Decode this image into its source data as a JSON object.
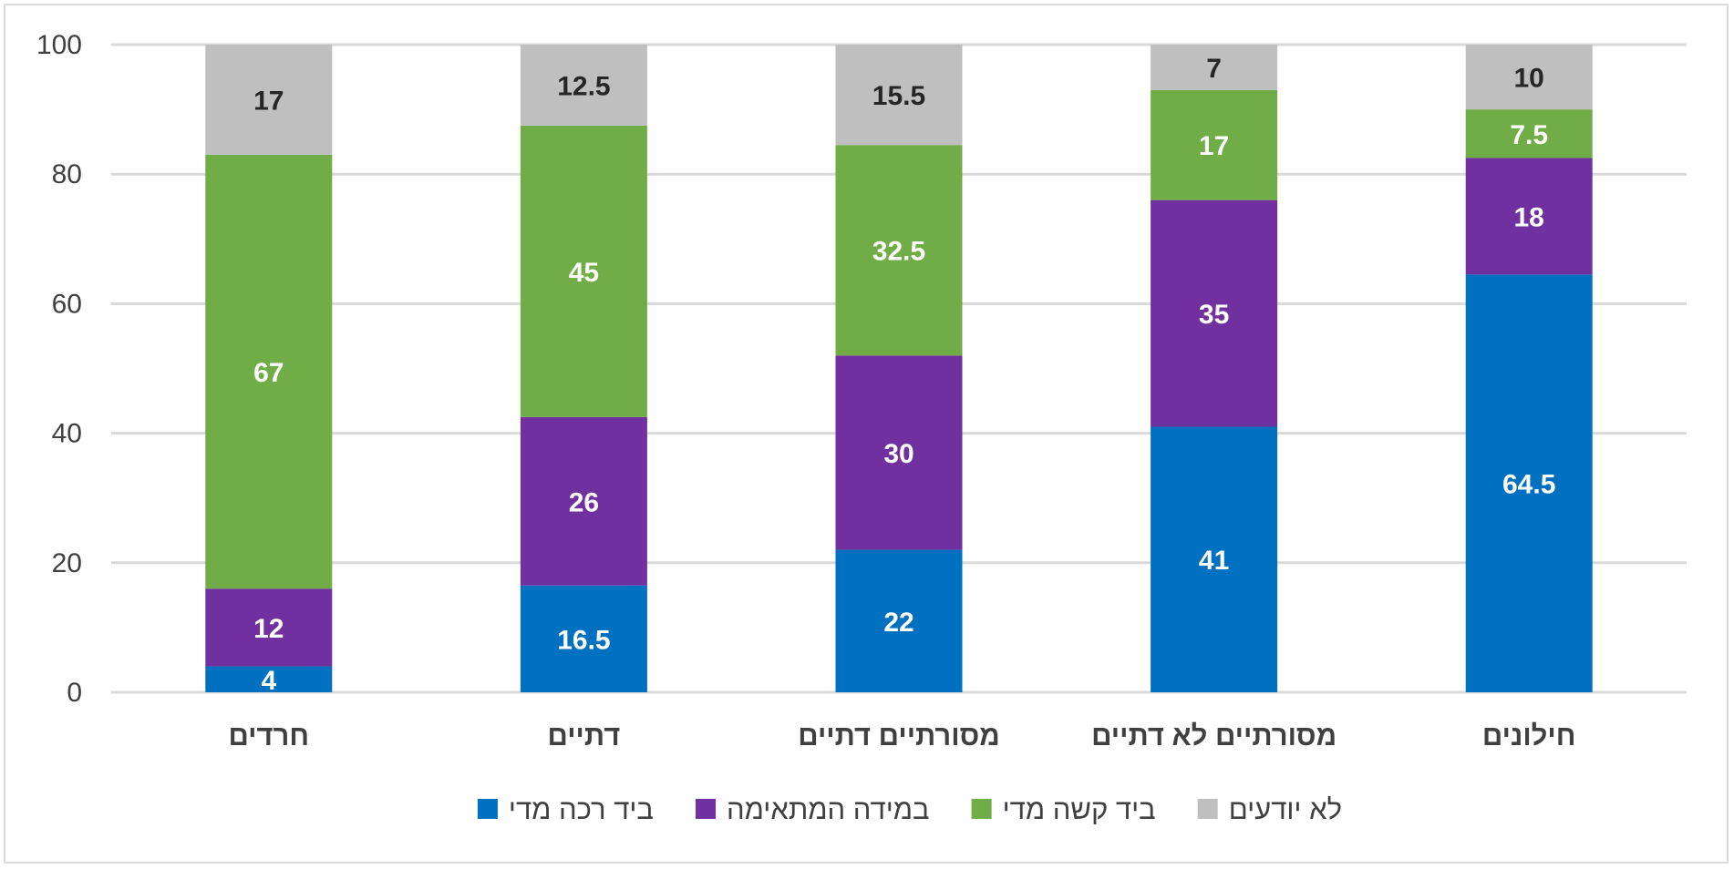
{
  "chart_data": {
    "type": "bar",
    "stacked": true,
    "title": "",
    "xlabel": "",
    "ylabel": "",
    "ylim": [
      0,
      100
    ],
    "yticks": [
      0,
      20,
      40,
      60,
      80,
      100
    ],
    "grid": true,
    "legend_position": "bottom",
    "categories": [
      "חרדים",
      "דתיים",
      "מסורתיים דתיים",
      "מסורתיים לא דתיים",
      "חילונים"
    ],
    "series": [
      {
        "name": "ביד רכה מדי",
        "color": "#0070c0",
        "label_color": "#ffffff",
        "values": [
          4,
          16.5,
          22,
          41,
          64.5
        ]
      },
      {
        "name": "במידה המתאימה",
        "color": "#7030a0",
        "label_color": "#ffffff",
        "values": [
          12,
          26,
          30,
          35,
          18
        ]
      },
      {
        "name": "ביד קשה מדי",
        "color": "#70ad47",
        "label_color": "#ffffff",
        "values": [
          67,
          45,
          32.5,
          17,
          7.5
        ]
      },
      {
        "name": "לא יודעים",
        "color": "#bfbfbf",
        "label_color": "#262626",
        "values": [
          17,
          12.5,
          15.5,
          7,
          10
        ]
      }
    ],
    "legend_order": [
      "לא יודעים",
      "ביד קשה מדי",
      "במידה המתאימה",
      "ביד רכה מדי"
    ]
  }
}
